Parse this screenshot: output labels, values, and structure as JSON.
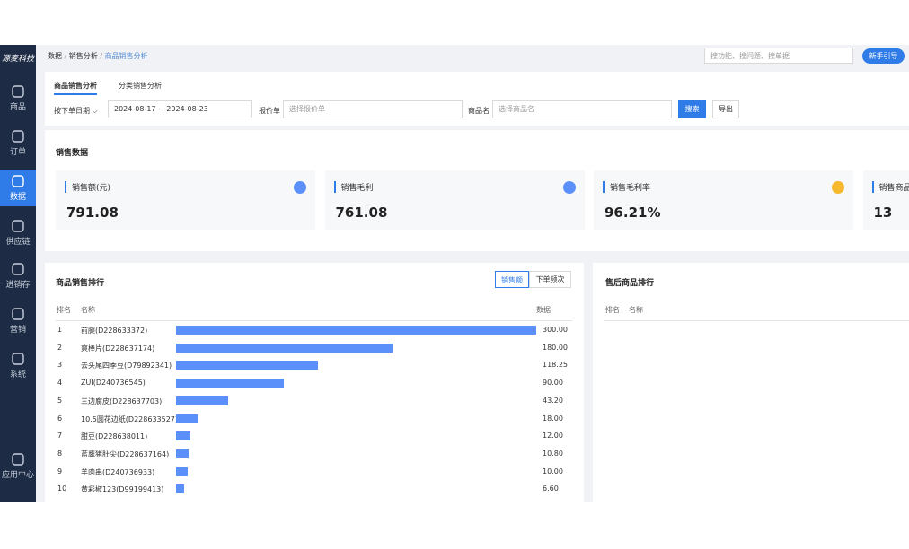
{
  "sidebar": {
    "logo": "源麦科技",
    "items": [
      "商品",
      "订单",
      "数据",
      "供应链",
      "进销存",
      "营销",
      "系统",
      "应用中心"
    ]
  },
  "header": {
    "breadcrumb": [
      "数据",
      "销售分析",
      "商品销售分析"
    ],
    "search_placeholder": "搜功能、搜问题、搜单据",
    "guide_button": "新手引导"
  },
  "tabs": [
    "商品销售分析",
    "分类销售分析"
  ],
  "filters": {
    "date_type": "按下单日期",
    "date_range": "2024-08-17 ~ 2024-08-23",
    "quote_label": "报价单",
    "quote_placeholder": "选择报价单",
    "product_label": "商品名",
    "product_placeholder": "选择商品名",
    "search_button": "搜索",
    "export_button": "导出"
  },
  "sales_data": {
    "title": "销售数据",
    "cards": [
      {
        "label": "销售额(元)",
        "value": "791.08"
      },
      {
        "label": "销售毛利",
        "value": "761.08"
      },
      {
        "label": "销售毛利率",
        "value": "96.21%"
      },
      {
        "label": "销售商品总",
        "value": "13"
      }
    ]
  },
  "ranking": {
    "title": "商品销售排行",
    "toggles": [
      "销售额",
      "下单频次"
    ],
    "columns": [
      "排名",
      "名称",
      "数据"
    ],
    "rows": [
      {
        "rank": 1,
        "name": "前腿(D228633372)",
        "value": 300,
        "value_label": "300.00"
      },
      {
        "rank": 2,
        "name": "爽棒片(D228637174)",
        "value": 180,
        "value_label": "180.00"
      },
      {
        "rank": 3,
        "name": "去头尾四季豆(D79892341)",
        "value": 118.25,
        "value_label": "118.25"
      },
      {
        "rank": 4,
        "name": "ZUI(D240736545)",
        "value": 90,
        "value_label": "90.00"
      },
      {
        "rank": 5,
        "name": "三边腐皮(D228637703)",
        "value": 43.2,
        "value_label": "43.20"
      },
      {
        "rank": 6,
        "name": "10.5圆花边纸(D228633527)",
        "value": 18,
        "value_label": "18.00"
      },
      {
        "rank": 7,
        "name": "甜豆(D228638011)",
        "value": 12,
        "value_label": "12.00"
      },
      {
        "rank": 8,
        "name": "蓝鹰猪肚尖(D228637164)",
        "value": 10.8,
        "value_label": "10.80"
      },
      {
        "rank": 9,
        "name": "羊肉串(D240736933)",
        "value": 10,
        "value_label": "10.00"
      },
      {
        "rank": 10,
        "name": "黄彩椒123(D99199413)",
        "value": 6.6,
        "value_label": "6.60"
      }
    ]
  },
  "after_sales": {
    "title": "售后商品排行",
    "columns": [
      "排名",
      "名称"
    ]
  }
}
